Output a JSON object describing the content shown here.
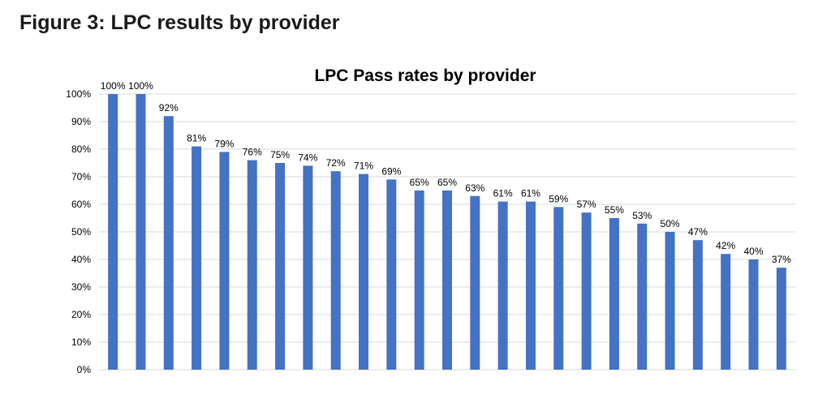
{
  "page": {
    "figure_title": "Figure 3: LPC results by provider"
  },
  "colors": {
    "bar": "#4472C4",
    "grid": "#d9d9d9"
  },
  "chart_data": {
    "type": "bar",
    "title": "LPC Pass rates by provider",
    "xlabel": "",
    "ylabel": "",
    "ylim": [
      0,
      100
    ],
    "y_ticks": [
      "0%",
      "10%",
      "20%",
      "30%",
      "40%",
      "50%",
      "60%",
      "70%",
      "80%",
      "90%",
      "100%"
    ],
    "grid": true,
    "values": [
      100,
      100,
      92,
      81,
      79,
      76,
      75,
      74,
      72,
      71,
      69,
      65,
      65,
      63,
      61,
      61,
      59,
      57,
      55,
      53,
      50,
      47,
      42,
      40,
      37
    ],
    "data_labels": [
      "100%",
      "100%",
      "92%",
      "81%",
      "79%",
      "76%",
      "75%",
      "74%",
      "72%",
      "71%",
      "69%",
      "65%",
      "65%",
      "63%",
      "61%",
      "61%",
      "59%",
      "57%",
      "55%",
      "53%",
      "50%",
      "47%",
      "42%",
      "40%",
      "37%"
    ]
  }
}
